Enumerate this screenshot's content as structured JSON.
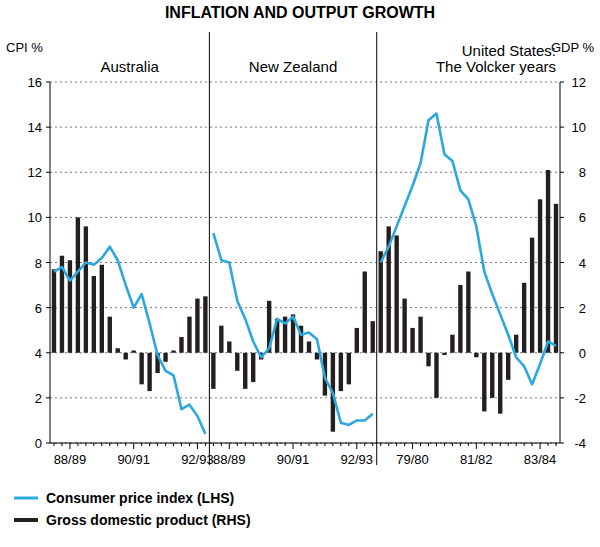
{
  "chart_data": {
    "type": "bar",
    "title": "INFLATION AND OUTPUT GROWTH",
    "ylabel": "CPI %",
    "y2label": "GDP %",
    "ylim": [
      0,
      16
    ],
    "yticks": [
      0,
      2,
      4,
      6,
      8,
      10,
      12,
      14,
      16
    ],
    "y2lim": [
      -4,
      12
    ],
    "y2ticks": [
      -4,
      -2,
      0,
      2,
      4,
      6,
      8,
      10,
      12
    ],
    "grid": true,
    "legend": "bottom",
    "series": [
      {
        "name": "Consumer price index (LHS)",
        "color": "#2aa8df",
        "type": "line",
        "axis": "y"
      },
      {
        "name": "Gross domestic product (RHS)",
        "color": "#231f20",
        "type": "bar",
        "axis": "y2"
      }
    ],
    "panels": [
      {
        "subtitle": [
          "Australia"
        ],
        "categories": [
          null,
          null,
          "88/89",
          null,
          null,
          null,
          null,
          null,
          null,
          null,
          "90/91",
          null,
          null,
          null,
          null,
          null,
          null,
          null,
          "92/93",
          null
        ],
        "series": [
          {
            "values": [
              7.6,
              7.8,
              7.2,
              7.6,
              8.0,
              7.9,
              8.2,
              8.7,
              8.1,
              7.0,
              6.0,
              6.6,
              5.3,
              3.9,
              3.2,
              3.0,
              1.5,
              1.7,
              1.2,
              0.4
            ]
          },
          {
            "values": [
              3.7,
              4.3,
              4.1,
              6.0,
              5.6,
              3.4,
              3.9,
              1.6,
              0.2,
              -0.3,
              0.1,
              -1.4,
              -1.7,
              -0.9,
              -0.4,
              0.1,
              0.7,
              1.6,
              2.4,
              2.5
            ]
          }
        ]
      },
      {
        "subtitle": [
          "New Zealand"
        ],
        "categories": [
          null,
          null,
          "88/89",
          null,
          null,
          null,
          null,
          null,
          null,
          null,
          "90/91",
          null,
          null,
          null,
          null,
          null,
          null,
          null,
          "92/93",
          null,
          null
        ],
        "series": [
          {
            "values": [
              9.3,
              8.1,
              8.0,
              6.3,
              5.5,
              4.5,
              3.8,
              4.2,
              5.5,
              5.3,
              5.6,
              4.8,
              4.9,
              4.6,
              2.9,
              2.2,
              0.9,
              0.8,
              1.0,
              1.0,
              1.3
            ]
          },
          {
            "values": [
              -1.6,
              1.2,
              0.5,
              -0.8,
              -1.6,
              -1.3,
              -0.3,
              2.3,
              1.5,
              1.6,
              1.7,
              1.2,
              0.5,
              -0.3,
              -1.9,
              -3.5,
              -1.7,
              -1.4,
              1.1,
              3.6,
              1.4
            ]
          }
        ]
      },
      {
        "subtitle": [
          "United States:",
          "The Volcker years"
        ],
        "categories": [
          null,
          null,
          null,
          null,
          "79/80",
          null,
          null,
          null,
          null,
          null,
          null,
          null,
          "81/82",
          null,
          null,
          null,
          null,
          null,
          null,
          null,
          "83/84",
          null,
          null
        ],
        "series": [
          {
            "values": [
              8.0,
              8.7,
              9.6,
              10.5,
              11.4,
              12.4,
              14.3,
              14.6,
              12.8,
              12.5,
              11.2,
              10.8,
              9.6,
              7.6,
              6.6,
              5.7,
              4.8,
              3.8,
              3.4,
              2.6,
              3.5,
              4.5,
              4.3
            ]
          },
          {
            "values": [
              4.5,
              5.6,
              5.2,
              2.4,
              1.1,
              1.6,
              -0.6,
              -2.0,
              -0.1,
              0.8,
              3.0,
              3.6,
              -0.2,
              -2.6,
              -2.0,
              -2.7,
              -1.2,
              0.8,
              3.1,
              5.1,
              6.8,
              8.1,
              6.6
            ]
          }
        ]
      }
    ]
  }
}
